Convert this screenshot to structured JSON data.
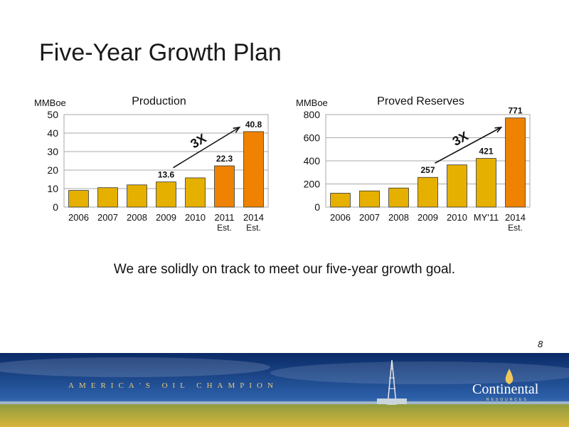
{
  "slide": {
    "title": "Five-Year Growth Plan",
    "subtitle": "We are solidly on track to meet our five-year growth goal.",
    "page_number": "8"
  },
  "footer": {
    "tagline": "AMERICA'S OIL CHAMPION",
    "logo_name": "Continental",
    "logo_sub": "RESOURCES"
  },
  "colors": {
    "bar_historic": "#e6b000",
    "bar_projected": "#ef8200",
    "bar_outline": "#333333",
    "grid": "#aaaaaa",
    "arrow": "#111111"
  },
  "chart_data": [
    {
      "type": "bar",
      "title": "Production",
      "ylabel": "MMBoe",
      "ylim": [
        0,
        50
      ],
      "yticks": [
        0,
        10,
        20,
        30,
        40,
        50
      ],
      "grid": true,
      "categories": [
        "2006",
        "2007",
        "2008",
        "2009",
        "2010",
        "2011",
        "2014"
      ],
      "category_sublabels": [
        "",
        "",
        "",
        "",
        "",
        "Est.",
        "Est."
      ],
      "values": [
        9,
        10.5,
        12,
        13.6,
        15.8,
        22.3,
        40.8
      ],
      "data_labels": [
        "",
        "",
        "",
        "13.6",
        "",
        "22.3",
        "40.8"
      ],
      "projected": [
        false,
        false,
        false,
        false,
        false,
        true,
        true
      ],
      "annotation": {
        "text": "3X",
        "from_index": 3,
        "to_index": 6
      }
    },
    {
      "type": "bar",
      "title": "Proved Reserves",
      "ylabel": "MMBoe",
      "ylim": [
        0,
        800
      ],
      "yticks": [
        0,
        200,
        400,
        600,
        800
      ],
      "grid": true,
      "categories": [
        "2006",
        "2007",
        "2008",
        "2009",
        "2010",
        "MY'11",
        "2014"
      ],
      "category_sublabels": [
        "",
        "",
        "",
        "",
        "",
        "",
        "Est."
      ],
      "values": [
        120,
        140,
        165,
        257,
        365,
        421,
        771
      ],
      "data_labels": [
        "",
        "",
        "",
        "257",
        "",
        "421",
        "771"
      ],
      "projected": [
        false,
        false,
        false,
        false,
        false,
        false,
        true
      ],
      "annotation": {
        "text": "3X",
        "from_index": 3,
        "to_index": 6
      }
    }
  ]
}
